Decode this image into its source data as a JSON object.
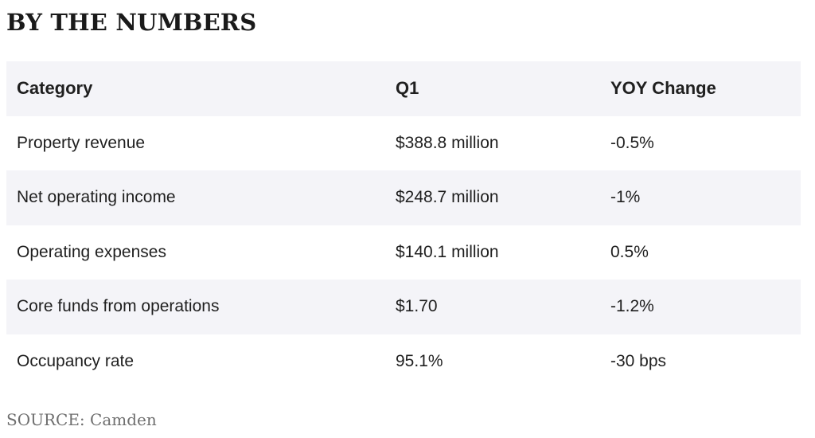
{
  "heading": "BY THE NUMBERS",
  "table": {
    "columns": [
      "Category",
      "Q1",
      "YOY Change"
    ],
    "rows": [
      [
        "Property revenue",
        "$388.8 million",
        "-0.5%"
      ],
      [
        "Net operating income",
        "$248.7 million",
        "-1%"
      ],
      [
        "Operating expenses",
        "$140.1 million",
        "0.5%"
      ],
      [
        "Core funds from operations",
        "$1.70",
        "-1.2%"
      ],
      [
        "Occupancy rate",
        "95.1%",
        "-30 bps"
      ]
    ]
  },
  "source": "SOURCE: Camden",
  "colors": {
    "stripe": "#f4f4f8",
    "text": "#1f1f1f",
    "source_text": "#6f6f6f"
  }
}
